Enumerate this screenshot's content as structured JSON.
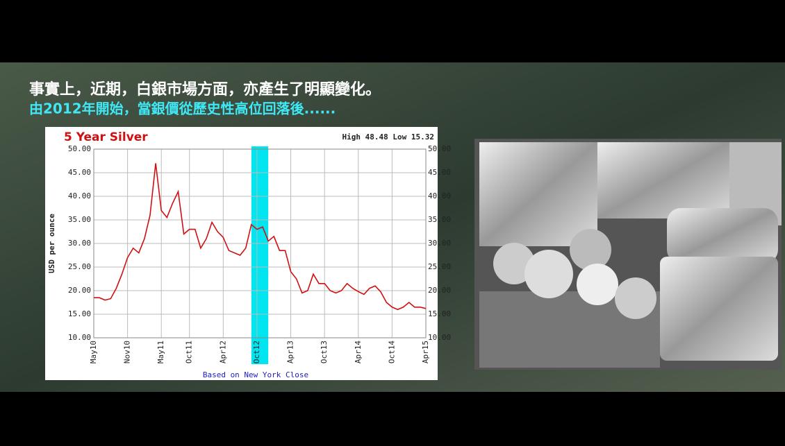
{
  "slide": {
    "title": "事實上，近期，白銀市場方面，亦產生了明顯變化。",
    "subtitle": "由2012年開始，當銀價從歷史性高位回落後......"
  },
  "chart_data": {
    "type": "line",
    "title": "5 Year Silver",
    "annotation": "High 48.48 Low 15.32",
    "y_label": "USD per ounce",
    "x_label": "Based on New York Close",
    "categories": [
      "May10",
      null,
      null,
      null,
      null,
      null,
      "Nov10",
      null,
      null,
      null,
      null,
      null,
      "May11",
      null,
      null,
      null,
      null,
      "Oct11",
      null,
      null,
      null,
      null,
      null,
      "Apr12",
      null,
      null,
      null,
      null,
      null,
      "Oct12",
      null,
      null,
      null,
      null,
      null,
      "Apr13",
      null,
      null,
      null,
      null,
      null,
      "Oct13",
      null,
      null,
      null,
      null,
      null,
      "Apr14",
      null,
      null,
      null,
      null,
      null,
      "Oct14",
      null,
      null,
      null,
      null,
      null,
      "Apr15"
    ],
    "values": [
      18.5,
      18.5,
      18,
      18.3,
      20.5,
      23.5,
      27,
      29,
      28,
      31,
      36,
      47,
      37,
      35.5,
      38.5,
      41,
      32,
      33,
      33,
      29,
      31,
      34.5,
      32.5,
      31.3,
      28.5,
      28,
      27.5,
      29,
      34,
      33,
      33.5,
      30.5,
      31.5,
      28.5,
      28.5,
      24,
      22.5,
      19.5,
      20,
      23.5,
      21.5,
      21.5,
      20,
      19.5,
      20,
      21.5,
      20.5,
      19.8,
      19.2,
      20.5,
      21,
      19.7,
      17.5,
      16.5,
      16,
      16.5,
      17.5,
      16.5,
      16.5,
      16.2
    ],
    "color": "#d01010",
    "highlight": [
      28,
      31
    ],
    "highlight_color": "#00e5f0",
    "ylim": [
      10,
      50
    ],
    "yticks": [
      {
        "value": 10,
        "label": "10.00"
      },
      {
        "value": 15,
        "label": "15.00"
      },
      {
        "value": 20,
        "label": "20.00"
      },
      {
        "value": 25,
        "label": "25.00"
      },
      {
        "value": 30,
        "label": "30.00"
      },
      {
        "value": 35,
        "label": "35.00"
      },
      {
        "value": 40,
        "label": "40.00"
      },
      {
        "value": 45,
        "label": "45.00"
      },
      {
        "value": 50,
        "label": "50.00"
      }
    ],
    "grid": true
  }
}
